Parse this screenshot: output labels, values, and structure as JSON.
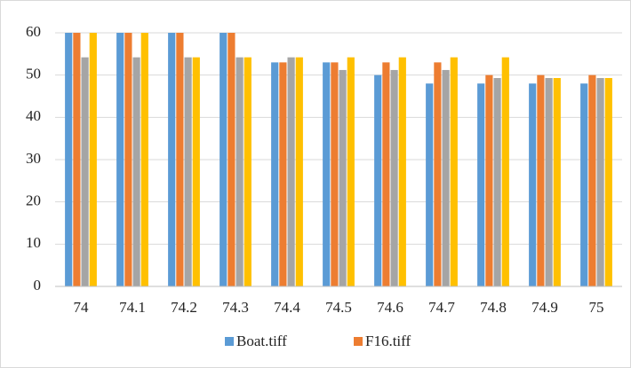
{
  "chart_data": {
    "type": "bar",
    "categories": [
      "74",
      "74.1",
      "74.2",
      "74.3",
      "74.4",
      "74.5",
      "74.6",
      "74.7",
      "74.8",
      "74.9",
      "75"
    ],
    "series": [
      {
        "name": "Boat.tiff",
        "color": "#5b9bd5",
        "values": [
          60,
          60,
          60,
          60,
          53,
          53,
          50,
          48,
          48,
          48,
          48
        ]
      },
      {
        "name": "F16.tiff",
        "color": "#ed7d31",
        "values": [
          60,
          60,
          60,
          60,
          53,
          53,
          53,
          53,
          50,
          50,
          50
        ]
      },
      {
        "color": "#a5a5a5",
        "values": [
          54.2,
          54.2,
          54.2,
          54.2,
          54.2,
          51.2,
          51.2,
          51.2,
          49.3,
          49.3,
          49.3
        ]
      },
      {
        "color": "#ffc000",
        "values": [
          60,
          60,
          54.2,
          54.2,
          54.2,
          54.2,
          54.2,
          54.2,
          54.2,
          49.3,
          49.3
        ]
      }
    ],
    "ylim": [
      0,
      60
    ],
    "yticks": [
      0,
      10,
      20,
      30,
      40,
      50,
      60
    ],
    "grid": true
  }
}
